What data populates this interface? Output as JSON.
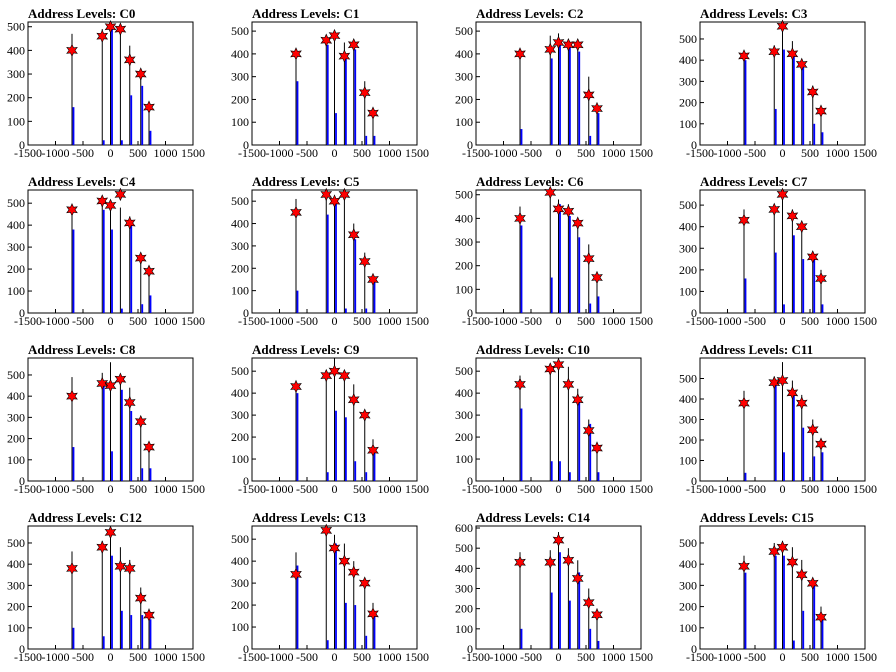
{
  "figure": {
    "background": "#ffffff",
    "layout": "4x4 grid of histograms"
  },
  "chart_data": {
    "type": "bar",
    "style": {
      "black_bar": "#000000",
      "blue_bar": "#0000ff",
      "marker_fill": "#ff0000",
      "marker_stroke": "#000000",
      "marker": "star"
    },
    "x_positions": [
      -700,
      -150,
      0,
      180,
      350,
      550,
      700
    ],
    "xlim": [
      -1500,
      1500
    ],
    "xticks": [
      -1500,
      -1000,
      -500,
      0,
      500,
      1000,
      1500
    ],
    "panels": [
      {
        "title": "Address Levels: C0",
        "ylim": [
          0,
          520
        ],
        "yticks": [
          0,
          100,
          200,
          300,
          400,
          500
        ],
        "black": [
          470,
          490,
          510,
          500,
          420,
          320,
          180
        ],
        "blue": [
          160,
          20,
          490,
          20,
          210,
          250,
          60
        ],
        "markers": [
          400,
          460,
          500,
          490,
          360,
          300,
          160
        ]
      },
      {
        "title": "Address Levels: C1",
        "ylim": [
          0,
          540
        ],
        "yticks": [
          0,
          100,
          200,
          300,
          400,
          500
        ],
        "black": [
          420,
          470,
          490,
          450,
          440,
          280,
          160
        ],
        "blue": [
          280,
          440,
          140,
          400,
          420,
          40,
          40
        ],
        "markers": [
          400,
          460,
          480,
          390,
          440,
          230,
          140
        ]
      },
      {
        "title": "Address Levels: C2",
        "ylim": [
          0,
          540
        ],
        "yticks": [
          0,
          100,
          200,
          300,
          400,
          500
        ],
        "black": [
          420,
          480,
          490,
          450,
          440,
          300,
          180
        ],
        "blue": [
          70,
          380,
          450,
          440,
          410,
          40,
          140
        ],
        "markers": [
          400,
          420,
          450,
          440,
          440,
          220,
          160
        ]
      },
      {
        "title": "Address Levels: C3",
        "ylim": [
          0,
          580
        ],
        "yticks": [
          0,
          100,
          200,
          300,
          400,
          500
        ],
        "black": [
          440,
          470,
          580,
          490,
          400,
          280,
          170
        ],
        "blue": [
          400,
          170,
          450,
          420,
          380,
          100,
          60
        ],
        "markers": [
          420,
          440,
          560,
          430,
          380,
          250,
          160
        ]
      },
      {
        "title": "Address Levels: C4",
        "ylim": [
          0,
          560
        ],
        "yticks": [
          0,
          100,
          200,
          300,
          400,
          500
        ],
        "black": [
          490,
          510,
          510,
          480,
          440,
          260,
          200
        ],
        "blue": [
          380,
          470,
          380,
          20,
          420,
          40,
          80
        ],
        "markers": [
          470,
          510,
          490,
          540,
          410,
          250,
          190
        ]
      },
      {
        "title": "Address Levels: C5",
        "ylim": [
          0,
          550
        ],
        "yticks": [
          0,
          100,
          200,
          300,
          400,
          500
        ],
        "black": [
          510,
          540,
          520,
          520,
          400,
          270,
          170
        ],
        "blue": [
          100,
          440,
          490,
          20,
          330,
          20,
          160
        ],
        "markers": [
          450,
          530,
          500,
          530,
          350,
          230,
          150
        ]
      },
      {
        "title": "Address Levels: C6",
        "ylim": [
          0,
          520
        ],
        "yticks": [
          0,
          100,
          200,
          300,
          400,
          500
        ],
        "black": [
          450,
          490,
          480,
          460,
          400,
          290,
          170
        ],
        "blue": [
          370,
          150,
          460,
          410,
          320,
          40,
          70
        ],
        "markers": [
          400,
          510,
          440,
          430,
          380,
          230,
          150
        ]
      },
      {
        "title": "Address Levels: C7",
        "ylim": [
          0,
          570
        ],
        "yticks": [
          0,
          100,
          200,
          300,
          400,
          500
        ],
        "black": [
          480,
          500,
          560,
          480,
          420,
          270,
          200
        ],
        "blue": [
          160,
          280,
          40,
          360,
          250,
          260,
          40
        ],
        "markers": [
          430,
          480,
          550,
          450,
          400,
          260,
          160
        ]
      },
      {
        "title": "Address Levels: C8",
        "ylim": [
          0,
          580
        ],
        "yticks": [
          0,
          100,
          200,
          300,
          400,
          500
        ],
        "black": [
          490,
          510,
          560,
          490,
          440,
          290,
          170
        ],
        "blue": [
          160,
          450,
          140,
          430,
          330,
          60,
          60
        ],
        "markers": [
          400,
          460,
          450,
          480,
          370,
          280,
          160
        ]
      },
      {
        "title": "Address Levels: C9",
        "ylim": [
          0,
          560
        ],
        "yticks": [
          0,
          100,
          200,
          300,
          400,
          500
        ],
        "black": [
          440,
          490,
          560,
          490,
          440,
          310,
          190
        ],
        "blue": [
          400,
          40,
          320,
          290,
          90,
          40,
          140
        ],
        "markers": [
          430,
          480,
          500,
          480,
          370,
          300,
          140
        ]
      },
      {
        "title": "Address Levels: C10",
        "ylim": [
          0,
          560
        ],
        "yticks": [
          0,
          100,
          200,
          300,
          400,
          500
        ],
        "black": [
          480,
          530,
          560,
          520,
          420,
          280,
          170
        ],
        "blue": [
          330,
          90,
          90,
          40,
          360,
          260,
          40
        ],
        "markers": [
          440,
          510,
          530,
          440,
          370,
          230,
          150
        ]
      },
      {
        "title": "Address Levels: C11",
        "ylim": [
          0,
          600
        ],
        "yticks": [
          0,
          100,
          200,
          300,
          400,
          500
        ],
        "black": [
          440,
          510,
          580,
          490,
          420,
          300,
          200
        ],
        "blue": [
          40,
          490,
          140,
          420,
          260,
          120,
          140
        ],
        "markers": [
          380,
          480,
          490,
          430,
          380,
          250,
          180
        ]
      },
      {
        "title": "Address Levels: C12",
        "ylim": [
          0,
          580
        ],
        "yticks": [
          0,
          100,
          200,
          300,
          400,
          500
        ],
        "black": [
          460,
          510,
          560,
          480,
          420,
          290,
          190
        ],
        "blue": [
          100,
          60,
          440,
          180,
          160,
          160,
          140
        ],
        "markers": [
          380,
          480,
          550,
          390,
          380,
          240,
          160
        ]
      },
      {
        "title": "Address Levels: C13",
        "ylim": [
          0,
          560
        ],
        "yticks": [
          0,
          100,
          200,
          300,
          400,
          500
        ],
        "black": [
          440,
          540,
          520,
          480,
          400,
          310,
          210
        ],
        "blue": [
          380,
          40,
          480,
          210,
          200,
          60,
          160
        ],
        "markers": [
          340,
          540,
          460,
          400,
          350,
          300,
          160
        ]
      },
      {
        "title": "Address Levels: C14",
        "ylim": [
          0,
          610
        ],
        "yticks": [
          0,
          100,
          200,
          300,
          400,
          500,
          600
        ],
        "black": [
          480,
          490,
          580,
          500,
          440,
          300,
          200
        ],
        "blue": [
          100,
          280,
          480,
          240,
          380,
          100,
          40
        ],
        "markers": [
          430,
          430,
          540,
          440,
          350,
          230,
          170
        ]
      },
      {
        "title": "Address Levels: C15",
        "ylim": [
          0,
          580
        ],
        "yticks": [
          0,
          100,
          200,
          300,
          400,
          500
        ],
        "black": [
          440,
          500,
          510,
          480,
          420,
          320,
          200
        ],
        "blue": [
          360,
          440,
          440,
          40,
          180,
          300,
          140
        ],
        "markers": [
          390,
          460,
          480,
          410,
          350,
          310,
          150
        ]
      }
    ]
  }
}
